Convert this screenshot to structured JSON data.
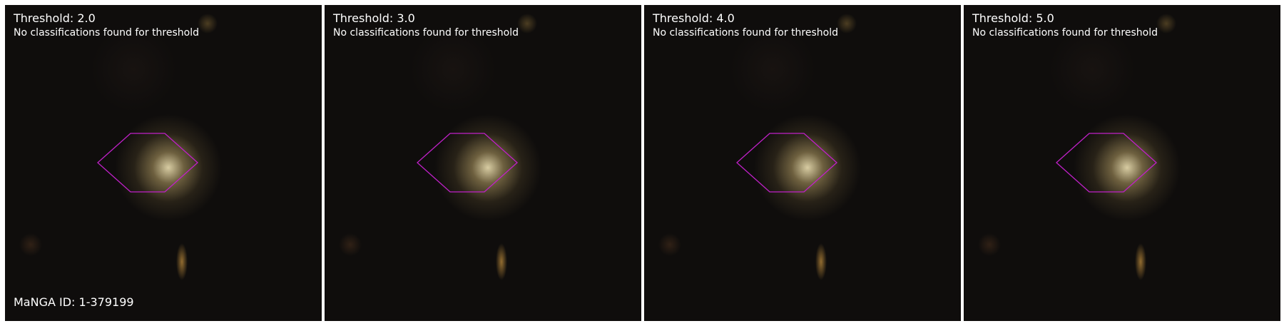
{
  "galaxy_id_label": "MaNGA ID: 1-379199",
  "hexagon_color": "#c020c8",
  "panels": [
    {
      "title": "Threshold: 2.0",
      "message": "No classifications found for threshold"
    },
    {
      "title": "Threshold: 3.0",
      "message": "No classifications found for threshold"
    },
    {
      "title": "Threshold: 4.0",
      "message": "No classifications found for threshold"
    },
    {
      "title": "Threshold: 5.0",
      "message": "No classifications found for threshold"
    }
  ]
}
